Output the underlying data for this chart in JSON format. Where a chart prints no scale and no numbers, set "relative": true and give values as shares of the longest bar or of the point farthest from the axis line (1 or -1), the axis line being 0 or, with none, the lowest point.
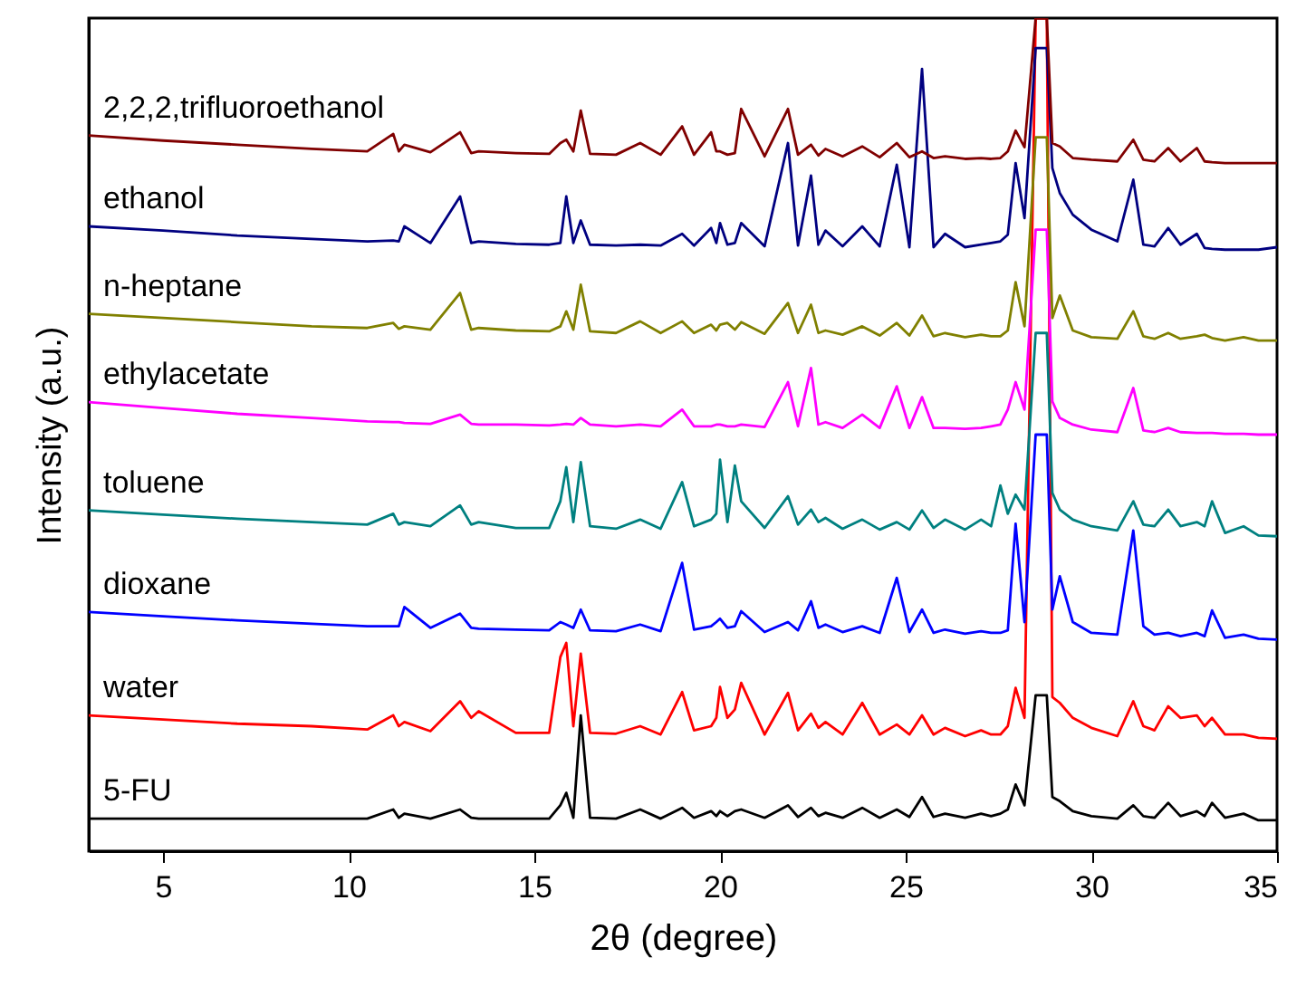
{
  "chart_data": {
    "type": "line",
    "relative": true,
    "xlabel": "2θ  (degree)",
    "ylabel": "Intensity  (a.u.)",
    "xlim": [
      3,
      35
    ],
    "xticks": [
      5,
      10,
      15,
      20,
      25,
      30,
      35
    ],
    "x": [
      3,
      5,
      7,
      9,
      10.5,
      11.2,
      11.35,
      11.5,
      12.2,
      13.0,
      13.3,
      13.5,
      14.5,
      15.4,
      15.7,
      15.86,
      16.05,
      16.25,
      16.5,
      17.2,
      17.85,
      18.4,
      18.98,
      19.3,
      19.76,
      19.9,
      20.0,
      20.2,
      20.4,
      20.57,
      21.2,
      21.83,
      22.1,
      22.45,
      22.65,
      22.84,
      23.3,
      23.83,
      24.3,
      24.76,
      25.1,
      25.44,
      25.75,
      26.06,
      26.6,
      27.03,
      27.3,
      27.55,
      27.75,
      27.96,
      28.2,
      28.5,
      28.8,
      28.95,
      29.15,
      29.5,
      30,
      30.7,
      31.13,
      31.4,
      31.7,
      32.07,
      32.4,
      32.84,
      33.05,
      33.25,
      33.6,
      34.1,
      34.5,
      35
    ],
    "series": [
      {
        "name": "2,2,2,trifluoroethanol",
        "color": "#800000",
        "values": [
          0.859,
          0.853,
          0.848,
          0.843,
          0.84,
          0.861,
          0.84,
          0.848,
          0.839,
          0.863,
          0.838,
          0.84,
          0.838,
          0.837,
          0.85,
          0.854,
          0.84,
          0.889,
          0.837,
          0.836,
          0.85,
          0.836,
          0.87,
          0.836,
          0.863,
          0.84,
          0.84,
          0.836,
          0.838,
          0.891,
          0.834,
          0.891,
          0.836,
          0.848,
          0.835,
          0.843,
          0.834,
          0.846,
          0.833,
          0.85,
          0.833,
          0.84,
          0.832,
          0.834,
          0.831,
          0.832,
          0.831,
          0.832,
          0.84,
          0.865,
          0.845,
          1,
          1,
          0.85,
          0.846,
          0.832,
          0.83,
          0.828,
          0.854,
          0.83,
          0.828,
          0.844,
          0.828,
          0.844,
          0.828,
          0.827,
          0.826,
          0.826,
          0.826,
          0.826
        ]
      },
      {
        "name": "ethanol",
        "color": "#000080",
        "values": [
          0.75,
          0.745,
          0.739,
          0.735,
          0.732,
          0.733,
          0.732,
          0.75,
          0.73,
          0.786,
          0.73,
          0.732,
          0.729,
          0.728,
          0.73,
          0.786,
          0.73,
          0.757,
          0.728,
          0.727,
          0.728,
          0.727,
          0.741,
          0.727,
          0.748,
          0.73,
          0.754,
          0.728,
          0.73,
          0.754,
          0.726,
          0.85,
          0.727,
          0.811,
          0.728,
          0.745,
          0.726,
          0.75,
          0.726,
          0.824,
          0.725,
          0.939,
          0.725,
          0.741,
          0.725,
          0.728,
          0.73,
          0.732,
          0.74,
          0.826,
          0.76,
          0.964,
          0.964,
          0.82,
          0.79,
          0.764,
          0.746,
          0.732,
          0.806,
          0.728,
          0.726,
          0.748,
          0.728,
          0.741,
          0.724,
          0.723,
          0.722,
          0.722,
          0.722,
          0.725
        ]
      },
      {
        "name": "n-heptane",
        "color": "#808000",
        "values": [
          0.645,
          0.64,
          0.635,
          0.63,
          0.628,
          0.634,
          0.627,
          0.63,
          0.626,
          0.67,
          0.626,
          0.628,
          0.625,
          0.624,
          0.63,
          0.648,
          0.626,
          0.68,
          0.624,
          0.622,
          0.636,
          0.622,
          0.636,
          0.622,
          0.632,
          0.625,
          0.632,
          0.634,
          0.626,
          0.635,
          0.621,
          0.658,
          0.622,
          0.656,
          0.622,
          0.625,
          0.62,
          0.63,
          0.619,
          0.634,
          0.619,
          0.643,
          0.618,
          0.622,
          0.617,
          0.62,
          0.618,
          0.618,
          0.625,
          0.683,
          0.63,
          0.857,
          0.857,
          0.64,
          0.667,
          0.625,
          0.617,
          0.615,
          0.648,
          0.618,
          0.615,
          0.622,
          0.615,
          0.618,
          0.62,
          0.616,
          0.613,
          0.617,
          0.613,
          0.613
        ]
      },
      {
        "name": "ethylacetate",
        "color": "#ff00ff",
        "values": [
          0.539,
          0.532,
          0.525,
          0.52,
          0.516,
          0.515,
          0.515,
          0.514,
          0.513,
          0.524,
          0.513,
          0.512,
          0.512,
          0.511,
          0.512,
          0.513,
          0.512,
          0.52,
          0.512,
          0.51,
          0.512,
          0.51,
          0.53,
          0.51,
          0.51,
          0.512,
          0.512,
          0.51,
          0.51,
          0.512,
          0.509,
          0.563,
          0.51,
          0.58,
          0.512,
          0.515,
          0.508,
          0.524,
          0.508,
          0.558,
          0.508,
          0.545,
          0.508,
          0.508,
          0.507,
          0.508,
          0.51,
          0.512,
          0.53,
          0.563,
          0.53,
          0.746,
          0.746,
          0.54,
          0.52,
          0.512,
          0.506,
          0.503,
          0.556,
          0.505,
          0.503,
          0.508,
          0.503,
          0.502,
          0.502,
          0.502,
          0.501,
          0.501,
          0.5,
          0.5
        ]
      },
      {
        "name": "toluene",
        "color": "#008080",
        "values": [
          0.409,
          0.404,
          0.399,
          0.395,
          0.392,
          0.405,
          0.392,
          0.395,
          0.39,
          0.415,
          0.392,
          0.395,
          0.388,
          0.388,
          0.42,
          0.461,
          0.395,
          0.467,
          0.39,
          0.387,
          0.398,
          0.387,
          0.443,
          0.39,
          0.398,
          0.405,
          0.47,
          0.395,
          0.463,
          0.42,
          0.388,
          0.426,
          0.392,
          0.41,
          0.395,
          0.4,
          0.387,
          0.398,
          0.386,
          0.395,
          0.386,
          0.409,
          0.388,
          0.398,
          0.386,
          0.398,
          0.39,
          0.439,
          0.405,
          0.428,
          0.41,
          0.622,
          0.622,
          0.43,
          0.41,
          0.398,
          0.39,
          0.385,
          0.42,
          0.392,
          0.39,
          0.41,
          0.39,
          0.395,
          0.39,
          0.42,
          0.382,
          0.39,
          0.379,
          0.378
        ]
      },
      {
        "name": "dioxane",
        "color": "#0000ff",
        "values": [
          0.287,
          0.282,
          0.277,
          0.273,
          0.27,
          0.27,
          0.27,
          0.293,
          0.268,
          0.285,
          0.268,
          0.267,
          0.266,
          0.265,
          0.275,
          0.272,
          0.268,
          0.29,
          0.265,
          0.264,
          0.272,
          0.264,
          0.346,
          0.266,
          0.27,
          0.275,
          0.279,
          0.268,
          0.27,
          0.288,
          0.263,
          0.275,
          0.265,
          0.3,
          0.268,
          0.272,
          0.263,
          0.27,
          0.262,
          0.328,
          0.263,
          0.29,
          0.262,
          0.266,
          0.261,
          0.264,
          0.262,
          0.262,
          0.265,
          0.393,
          0.275,
          0.5,
          0.5,
          0.29,
          0.33,
          0.275,
          0.262,
          0.26,
          0.385,
          0.27,
          0.26,
          0.262,
          0.258,
          0.262,
          0.258,
          0.289,
          0.256,
          0.26,
          0.255,
          0.254
        ]
      },
      {
        "name": "water",
        "color": "#ff0000",
        "values": [
          0.163,
          0.158,
          0.153,
          0.15,
          0.146,
          0.163,
          0.15,
          0.155,
          0.144,
          0.18,
          0.16,
          0.168,
          0.142,
          0.142,
          0.233,
          0.25,
          0.15,
          0.237,
          0.142,
          0.141,
          0.15,
          0.14,
          0.191,
          0.145,
          0.15,
          0.16,
          0.197,
          0.16,
          0.17,
          0.202,
          0.14,
          0.19,
          0.145,
          0.165,
          0.148,
          0.155,
          0.14,
          0.178,
          0.14,
          0.152,
          0.14,
          0.163,
          0.14,
          0.148,
          0.138,
          0.145,
          0.14,
          0.14,
          0.15,
          0.196,
          0.16,
          1,
          1,
          0.185,
          0.178,
          0.16,
          0.148,
          0.138,
          0.18,
          0.15,
          0.145,
          0.174,
          0.16,
          0.163,
          0.15,
          0.16,
          0.14,
          0.14,
          0.136,
          0.135
        ]
      },
      {
        "name": "5-FU",
        "color": "#000000",
        "values": [
          0.039,
          0.039,
          0.039,
          0.039,
          0.039,
          0.05,
          0.04,
          0.045,
          0.039,
          0.05,
          0.04,
          0.039,
          0.039,
          0.039,
          0.055,
          0.07,
          0.04,
          0.163,
          0.04,
          0.039,
          0.05,
          0.039,
          0.052,
          0.04,
          0.048,
          0.042,
          0.048,
          0.042,
          0.048,
          0.05,
          0.04,
          0.055,
          0.041,
          0.052,
          0.042,
          0.046,
          0.04,
          0.052,
          0.04,
          0.05,
          0.041,
          0.065,
          0.041,
          0.045,
          0.04,
          0.045,
          0.042,
          0.045,
          0.05,
          0.08,
          0.055,
          0.187,
          0.187,
          0.065,
          0.06,
          0.048,
          0.042,
          0.039,
          0.055,
          0.042,
          0.04,
          0.058,
          0.042,
          0.048,
          0.042,
          0.058,
          0.04,
          0.045,
          0.037,
          0.037
        ]
      }
    ]
  }
}
